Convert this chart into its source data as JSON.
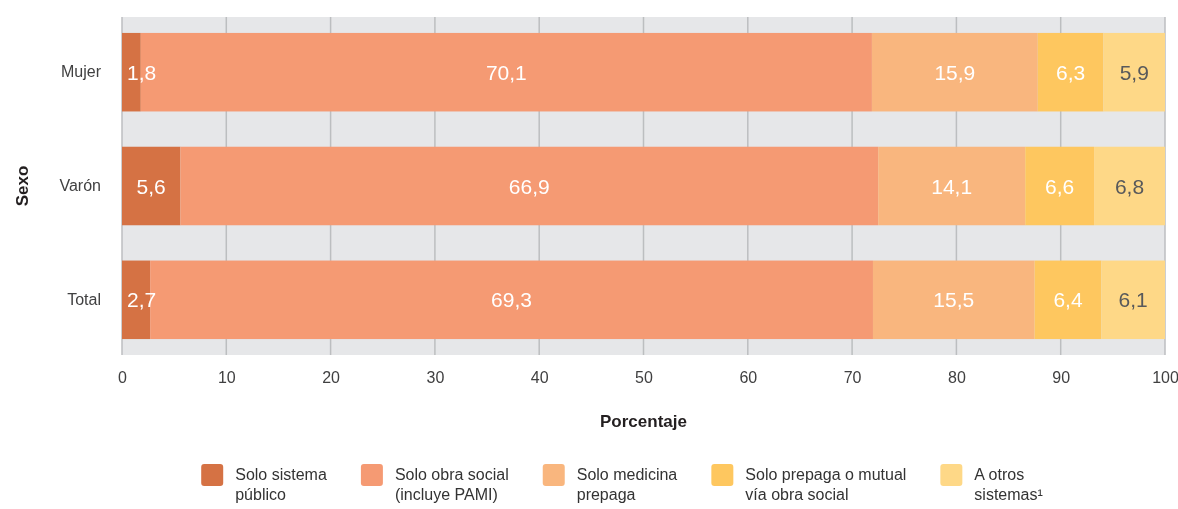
{
  "chart_data": {
    "type": "bar",
    "orientation": "horizontal",
    "stacked": true,
    "xlabel": "Porcentaje",
    "ylabel": "Sexo",
    "categories": [
      "Mujer",
      "Varón",
      "Total"
    ],
    "series": [
      {
        "name": "Solo sistema público",
        "color": "#d57244",
        "values": [
          1.8,
          5.6,
          2.7
        ],
        "value_labels": [
          "1,8",
          "5,6",
          "2,7"
        ]
      },
      {
        "name": "Solo obra social (incluye PAMI)",
        "color": "#f59a73",
        "values": [
          70.1,
          66.9,
          69.3
        ],
        "value_labels": [
          "70,1",
          "66,9",
          "69,3"
        ]
      },
      {
        "name": "Solo medicina prepaga",
        "color": "#f9b67e",
        "values": [
          15.9,
          14.1,
          15.5
        ],
        "value_labels": [
          "15,9",
          "14,1",
          "15,5"
        ]
      },
      {
        "name": "Solo prepaga o mutual vía obra social",
        "color": "#fec75f",
        "values": [
          6.3,
          6.6,
          6.4
        ],
        "value_labels": [
          "6,3",
          "6,6",
          "6,4"
        ]
      },
      {
        "name": "A otros sistemas¹",
        "color": "#fed887",
        "values": [
          5.9,
          6.8,
          6.1
        ],
        "value_labels": [
          "5,9",
          "6,8",
          "6,1"
        ]
      }
    ],
    "xlim": [
      0,
      100
    ],
    "xticks": [
      0,
      10,
      20,
      30,
      40,
      50,
      60,
      70,
      80,
      90,
      100
    ],
    "grid": "x",
    "legend": "bottom"
  }
}
